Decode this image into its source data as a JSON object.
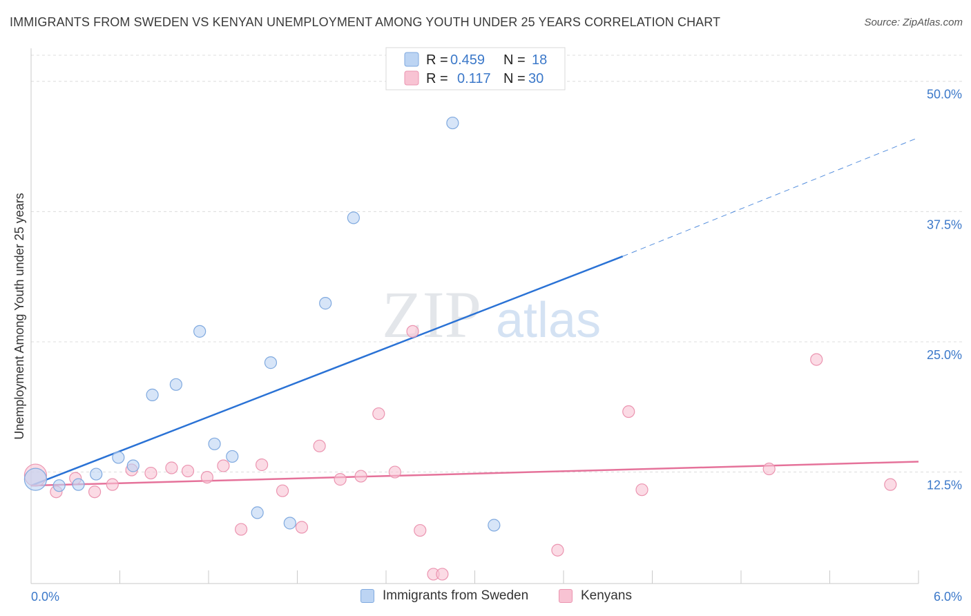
{
  "header": {
    "title": "IMMIGRANTS FROM SWEDEN VS KENYAN UNEMPLOYMENT AMONG YOUTH UNDER 25 YEARS CORRELATION CHART",
    "source": "Source: ZipAtlas.com"
  },
  "watermark": {
    "zip": "ZIP",
    "atlas": "atlas"
  },
  "colors": {
    "sweden_fill": "#bcd4f3",
    "sweden_stroke": "#7fa9df",
    "sweden_line": "#2a72d5",
    "kenya_fill": "#f8c3d3",
    "kenya_stroke": "#eb94b0",
    "kenya_line": "#e5729a",
    "tick_text": "#3b78c9",
    "grid": "#dcdcdc"
  },
  "chart_data": {
    "type": "scatter",
    "title": "IMMIGRANTS FROM SWEDEN VS KENYAN UNEMPLOYMENT AMONG YOUTH UNDER 25 YEARS CORRELATION CHART",
    "xlabel": "",
    "ylabel": "Unemployment Among Youth under 25 years",
    "xlim": [
      0,
      6
    ],
    "ylim": [
      1.8,
      52.5
    ],
    "x_tick_labels": {
      "min": "0.0%",
      "max": "6.0%"
    },
    "y_ticks": [
      {
        "value": 12.5,
        "label": "12.5%"
      },
      {
        "value": 25.0,
        "label": "25.0%"
      },
      {
        "value": 37.5,
        "label": "37.5%"
      },
      {
        "value": 50.0,
        "label": "50.0%"
      }
    ],
    "legend": {
      "position": "top-center",
      "rows": [
        {
          "r_label": "R =",
          "r_value": "0.459",
          "n_label": "N =",
          "n_value": "18"
        },
        {
          "r_label": "R =",
          "r_value": "0.117",
          "n_label": "N =",
          "n_value": "30"
        }
      ]
    },
    "series": [
      {
        "name": "Immigrants from Sweden",
        "r": 0.459,
        "n": 18,
        "points": [
          {
            "x": 0.03,
            "y": 11.8,
            "size": "large"
          },
          {
            "x": 0.19,
            "y": 11.2
          },
          {
            "x": 0.32,
            "y": 11.3
          },
          {
            "x": 0.44,
            "y": 12.3
          },
          {
            "x": 0.59,
            "y": 13.9
          },
          {
            "x": 0.69,
            "y": 13.1
          },
          {
            "x": 0.82,
            "y": 19.9
          },
          {
            "x": 0.98,
            "y": 20.9
          },
          {
            "x": 1.14,
            "y": 26.0
          },
          {
            "x": 1.24,
            "y": 15.2
          },
          {
            "x": 1.36,
            "y": 14.0
          },
          {
            "x": 1.53,
            "y": 8.6
          },
          {
            "x": 1.62,
            "y": 23.0
          },
          {
            "x": 1.75,
            "y": 7.6
          },
          {
            "x": 1.99,
            "y": 28.7
          },
          {
            "x": 2.18,
            "y": 36.9
          },
          {
            "x": 2.85,
            "y": 46.0
          },
          {
            "x": 3.13,
            "y": 7.4
          }
        ],
        "trend": {
          "x0": 0.0,
          "y0": 11.2,
          "x1": 4.0,
          "y1": 33.2,
          "dashed_to_x": 6.0,
          "dashed_to_y": 44.6
        }
      },
      {
        "name": "Kenyans",
        "r": 0.117,
        "n": 30,
        "points": [
          {
            "x": 0.03,
            "y": 12.2,
            "size": "large"
          },
          {
            "x": 0.17,
            "y": 10.6
          },
          {
            "x": 0.3,
            "y": 11.9
          },
          {
            "x": 0.43,
            "y": 10.6
          },
          {
            "x": 0.55,
            "y": 11.3
          },
          {
            "x": 0.68,
            "y": 12.7
          },
          {
            "x": 0.81,
            "y": 12.4
          },
          {
            "x": 0.95,
            "y": 12.9
          },
          {
            "x": 1.06,
            "y": 12.6
          },
          {
            "x": 1.19,
            "y": 12.0
          },
          {
            "x": 1.3,
            "y": 13.1
          },
          {
            "x": 1.42,
            "y": 7.0
          },
          {
            "x": 1.56,
            "y": 13.2
          },
          {
            "x": 1.7,
            "y": 10.7
          },
          {
            "x": 1.83,
            "y": 7.2
          },
          {
            "x": 1.95,
            "y": 15.0
          },
          {
            "x": 2.09,
            "y": 11.8
          },
          {
            "x": 2.23,
            "y": 12.1
          },
          {
            "x": 2.35,
            "y": 18.1
          },
          {
            "x": 2.46,
            "y": 12.5
          },
          {
            "x": 2.58,
            "y": 26.0
          },
          {
            "x": 2.63,
            "y": 6.9
          },
          {
            "x": 2.72,
            "y": 2.7
          },
          {
            "x": 2.78,
            "y": 2.7
          },
          {
            "x": 3.56,
            "y": 5.0
          },
          {
            "x": 4.04,
            "y": 18.3
          },
          {
            "x": 4.13,
            "y": 10.8
          },
          {
            "x": 4.99,
            "y": 12.8
          },
          {
            "x": 5.31,
            "y": 23.3
          },
          {
            "x": 5.81,
            "y": 11.3
          }
        ],
        "trend": {
          "x0": 0.0,
          "y0": 11.2,
          "x1": 6.0,
          "y1": 13.5
        }
      }
    ]
  },
  "bottom_legend": {
    "items": [
      {
        "label": "Immigrants from Sweden"
      },
      {
        "label": "Kenyans"
      }
    ]
  }
}
